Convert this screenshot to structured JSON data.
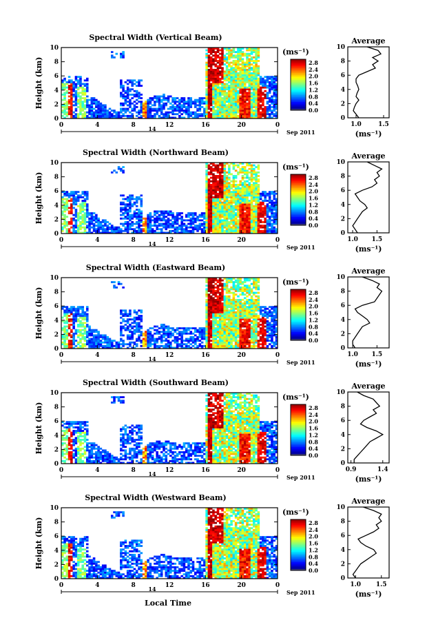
{
  "figure": {
    "xlabel": "Local Time",
    "ylabel": "Height (km)",
    "unit": "(ms⁻¹)",
    "day_label": "14",
    "month_label": "Sep 2011",
    "avg_title": "Average",
    "avg_unit": "(ms⁻¹)"
  },
  "chart_data": [
    {
      "type": "heatmap",
      "title": "Spectral Width (Vertical Beam)",
      "xlabel": "Local Time",
      "ylabel": "Height (km)",
      "x_ticks": [
        "0",
        "4",
        "8",
        "12",
        "16",
        "20",
        "0"
      ],
      "y_ticks": [
        "0",
        "2",
        "4",
        "6",
        "8",
        "10"
      ],
      "xlim": [
        0,
        24
      ],
      "ylim": [
        0,
        10
      ],
      "colorbar": {
        "label": "(ms⁻¹)",
        "ticks": [
          "0.0",
          "0.4",
          "0.8",
          "1.2",
          "1.6",
          "2.0",
          "2.4",
          "2.8"
        ],
        "range": [
          0.0,
          3.0
        ]
      },
      "average_profile": {
        "title": "Average",
        "xlabel": "(ms⁻¹)",
        "x_ticks": [
          "1.0",
          "1.5"
        ],
        "xlim": [
          0.85,
          1.6
        ],
        "y_ticks": [
          "0",
          "2",
          "4",
          "6",
          "8",
          "10"
        ],
        "height": [
          0,
          0.5,
          1,
          1.5,
          2,
          2.5,
          3,
          3.5,
          4,
          4.5,
          5,
          5.5,
          6,
          6.5,
          7,
          7.5,
          8,
          8.5,
          9,
          9.5,
          10
        ],
        "values": [
          1.05,
          1.0,
          0.95,
          0.97,
          1.0,
          1.05,
          1.0,
          1.02,
          1.05,
          1.03,
          1.0,
          1.0,
          1.05,
          1.2,
          1.35,
          1.3,
          1.4,
          1.3,
          1.45,
          1.4,
          1.2
        ]
      }
    },
    {
      "type": "heatmap",
      "title": "Spectral Width (Northward Beam)",
      "xlabel": "Local Time",
      "ylabel": "Height (km)",
      "x_ticks": [
        "0",
        "4",
        "8",
        "12",
        "16",
        "20",
        "0"
      ],
      "y_ticks": [
        "0",
        "2",
        "4",
        "6",
        "8",
        "10"
      ],
      "xlim": [
        0,
        24
      ],
      "ylim": [
        0,
        10
      ],
      "colorbar": {
        "label": "(ms⁻¹)",
        "ticks": [
          "0.0",
          "0.4",
          "0.8",
          "1.2",
          "1.6",
          "2.0",
          "2.4",
          "2.8"
        ],
        "range": [
          0.0,
          3.0
        ]
      },
      "average_profile": {
        "title": "Average",
        "xlabel": "(ms⁻¹)",
        "x_ticks": [
          "1.0",
          "1.5"
        ],
        "xlim": [
          0.9,
          1.75
        ],
        "y_ticks": [
          "0",
          "2",
          "4",
          "6",
          "8",
          "10"
        ],
        "height": [
          0,
          0.5,
          1,
          1.5,
          2,
          2.5,
          3,
          3.5,
          4,
          4.5,
          5,
          5.5,
          6,
          6.5,
          7,
          7.5,
          8,
          8.5,
          9,
          9.5,
          10
        ],
        "values": [
          1.1,
          1.05,
          1.0,
          1.05,
          1.1,
          1.15,
          1.2,
          1.3,
          1.25,
          1.15,
          1.1,
          1.05,
          1.2,
          1.4,
          1.5,
          1.45,
          1.55,
          1.5,
          1.6,
          1.45,
          1.3
        ]
      }
    },
    {
      "type": "heatmap",
      "title": "Spectral Width (Eastward Beam)",
      "xlabel": "Local Time",
      "ylabel": "Height (km)",
      "x_ticks": [
        "0",
        "4",
        "8",
        "12",
        "16",
        "20",
        "0"
      ],
      "y_ticks": [
        "0",
        "2",
        "4",
        "6",
        "8",
        "10"
      ],
      "xlim": [
        0,
        24
      ],
      "ylim": [
        0,
        10
      ],
      "colorbar": {
        "label": "(ms⁻¹)",
        "ticks": [
          "0.0",
          "0.4",
          "0.8",
          "1.2",
          "1.6",
          "2.0",
          "2.4",
          "2.8"
        ],
        "range": [
          0.0,
          3.0
        ]
      },
      "average_profile": {
        "title": "Average",
        "xlabel": "(ms⁻¹)",
        "x_ticks": [
          "1.0",
          "1.5"
        ],
        "xlim": [
          0.9,
          1.75
        ],
        "y_ticks": [
          "0",
          "2",
          "4",
          "6",
          "8",
          "10"
        ],
        "height": [
          0,
          0.5,
          1,
          1.5,
          2,
          2.5,
          3,
          3.5,
          4,
          4.5,
          5,
          5.5,
          6,
          6.5,
          7,
          7.5,
          8,
          8.5,
          9,
          9.5,
          10
        ],
        "values": [
          1.05,
          1.0,
          1.0,
          1.05,
          1.1,
          1.15,
          1.2,
          1.35,
          1.3,
          1.2,
          1.1,
          1.05,
          1.2,
          1.45,
          1.5,
          1.55,
          1.6,
          1.5,
          1.55,
          1.4,
          1.2
        ]
      }
    },
    {
      "type": "heatmap",
      "title": "Spectral Width (Southward Beam)",
      "xlabel": "Local Time",
      "ylabel": "Height (km)",
      "x_ticks": [
        "0",
        "4",
        "8",
        "12",
        "16",
        "20",
        "0"
      ],
      "y_ticks": [
        "0",
        "2",
        "4",
        "6",
        "8",
        "10"
      ],
      "xlim": [
        0,
        24
      ],
      "ylim": [
        0,
        10
      ],
      "colorbar": {
        "label": "(ms⁻¹)",
        "ticks": [
          "0.0",
          "0.4",
          "0.8",
          "1.2",
          "1.6",
          "2.0",
          "2.4",
          "2.8"
        ],
        "range": [
          0.0,
          3.0
        ]
      },
      "average_profile": {
        "title": "Average",
        "xlabel": "(ms⁻¹)",
        "x_ticks": [
          "0.9",
          "1.4"
        ],
        "xlim": [
          0.85,
          1.5
        ],
        "y_ticks": [
          "0",
          "2",
          "4",
          "6",
          "8",
          "10"
        ],
        "height": [
          0,
          0.5,
          1,
          1.5,
          2,
          2.5,
          3,
          3.5,
          4,
          4.5,
          5,
          5.5,
          6,
          6.5,
          7,
          7.5,
          8,
          8.5,
          9,
          9.5,
          10
        ],
        "values": [
          0.95,
          0.95,
          1.0,
          1.05,
          1.1,
          1.15,
          1.2,
          1.3,
          1.4,
          1.3,
          1.15,
          1.05,
          1.1,
          1.2,
          1.3,
          1.25,
          1.35,
          1.3,
          1.25,
          1.1,
          1.0
        ]
      }
    },
    {
      "type": "heatmap",
      "title": "Spectral Width (Westward Beam)",
      "xlabel": "Local Time",
      "ylabel": "Height (km)",
      "x_ticks": [
        "0",
        "4",
        "8",
        "12",
        "16",
        "20",
        "0"
      ],
      "y_ticks": [
        "0",
        "2",
        "4",
        "6",
        "8",
        "10"
      ],
      "xlim": [
        0,
        24
      ],
      "ylim": [
        0,
        10
      ],
      "colorbar": {
        "label": "(ms⁻¹)",
        "ticks": [
          "0.0",
          "0.4",
          "0.8",
          "1.2",
          "1.6",
          "2.0",
          "2.4",
          "2.8"
        ],
        "range": [
          0.0,
          3.0
        ]
      },
      "average_profile": {
        "title": "Average",
        "xlabel": "(ms⁻¹)",
        "x_ticks": [
          "1.0",
          "1.5"
        ],
        "xlim": [
          0.85,
          1.65
        ],
        "y_ticks": [
          "0",
          "2",
          "4",
          "6",
          "8",
          "10"
        ],
        "height": [
          0,
          0.5,
          1,
          1.5,
          2,
          2.5,
          3,
          3.5,
          4,
          4.5,
          5,
          5.5,
          6,
          6.5,
          7,
          7.5,
          8,
          8.5,
          9,
          9.5,
          10
        ],
        "values": [
          1.0,
          0.95,
          1.0,
          1.05,
          1.1,
          1.2,
          1.3,
          1.4,
          1.35,
          1.2,
          1.1,
          1.05,
          1.2,
          1.35,
          1.45,
          1.4,
          1.5,
          1.45,
          1.5,
          1.35,
          1.15
        ]
      }
    }
  ]
}
